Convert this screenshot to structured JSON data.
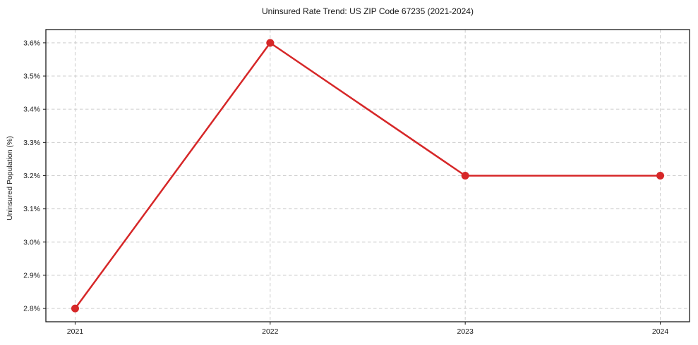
{
  "chart_data": {
    "type": "line",
    "title": "Uninsured Rate Trend: US ZIP Code 67235 (2021-2024)",
    "xlabel": "",
    "ylabel": "Uninsured Population (%)",
    "x": [
      2021,
      2022,
      2023,
      2024
    ],
    "x_tick_labels": [
      "2021",
      "2022",
      "2023",
      "2024"
    ],
    "y_ticks": [
      2.8,
      2.9,
      3.0,
      3.1,
      3.2,
      3.3,
      3.4,
      3.5,
      3.6
    ],
    "y_tick_labels": [
      "2.8%",
      "2.9%",
      "3.0%",
      "3.1%",
      "3.2%",
      "3.3%",
      "3.4%",
      "3.5%",
      "3.6%"
    ],
    "series": [
      {
        "name": "Uninsured Population (%)",
        "values": [
          2.8,
          3.6,
          3.2,
          3.2
        ],
        "color": "#d62728"
      }
    ],
    "xlim": [
      2020.85,
      2024.15
    ],
    "ylim": [
      2.76,
      3.64
    ],
    "grid": true,
    "legend": "none",
    "grid_color": "#cdcdcd",
    "spine_color": "#1a1a1a",
    "tick_color": "#1a1a1a",
    "background_color": "#ffffff",
    "line_width": 2.5,
    "marker": "circle",
    "marker_radius": 5.5
  }
}
